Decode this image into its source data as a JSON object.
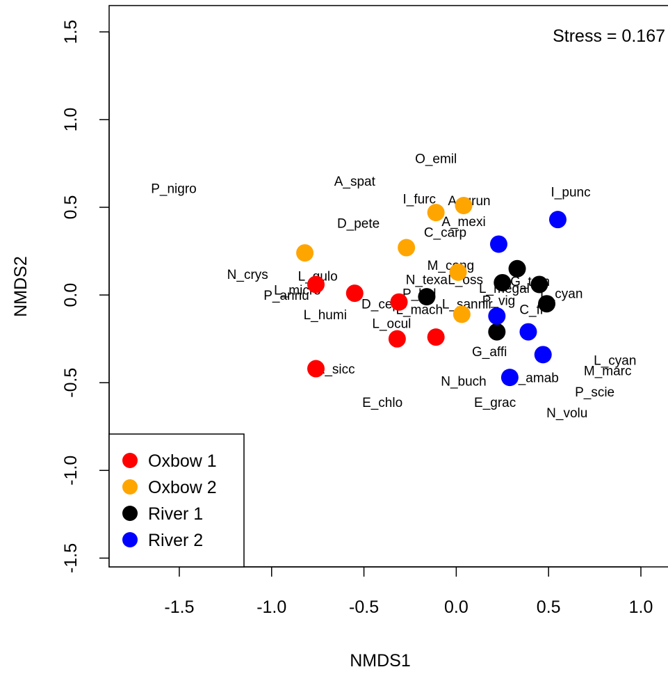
{
  "chart_data": {
    "type": "scatter",
    "xlabel": "NMDS1",
    "ylabel": "NMDS2",
    "xlim": [
      -1.88,
      1.32
    ],
    "ylim": [
      -1.55,
      1.65
    ],
    "x_ticks": [
      {
        "value": -1.5,
        "label": "-1.5"
      },
      {
        "value": -1.0,
        "label": "-1.0"
      },
      {
        "value": -0.5,
        "label": "-0.5"
      },
      {
        "value": 0.0,
        "label": "0.0"
      },
      {
        "value": 0.5,
        "label": "0.5"
      },
      {
        "value": 1.0,
        "label": "1.0"
      }
    ],
    "y_ticks": [
      {
        "value": -1.5,
        "label": "-1.5"
      },
      {
        "value": -1.0,
        "label": "-1.0"
      },
      {
        "value": -0.5,
        "label": "-0.5"
      },
      {
        "value": 0.0,
        "label": "0.0"
      },
      {
        "value": 0.5,
        "label": "0.5"
      },
      {
        "value": 1.0,
        "label": "1.0"
      },
      {
        "value": 1.5,
        "label": "1.5"
      }
    ],
    "annotation": "Stress = 0.167",
    "grid": false,
    "legend_position": "bottom-left",
    "series": [
      {
        "name": "Oxbow 1",
        "color": "#ff0000",
        "points": [
          {
            "x": -0.76,
            "y": 0.06
          },
          {
            "x": -0.55,
            "y": 0.01
          },
          {
            "x": -0.31,
            "y": -0.04
          },
          {
            "x": -0.32,
            "y": -0.25
          },
          {
            "x": -0.11,
            "y": -0.24
          },
          {
            "x": -0.76,
            "y": -0.42
          }
        ]
      },
      {
        "name": "Oxbow 2",
        "color": "#ffa500",
        "points": [
          {
            "x": -0.82,
            "y": 0.24
          },
          {
            "x": -0.27,
            "y": 0.27
          },
          {
            "x": -0.11,
            "y": 0.47
          },
          {
            "x": 0.04,
            "y": 0.51
          },
          {
            "x": 0.01,
            "y": 0.13
          },
          {
            "x": 0.03,
            "y": -0.11
          }
        ]
      },
      {
        "name": "River 1",
        "color": "#000000",
        "points": [
          {
            "x": -0.16,
            "y": -0.01
          },
          {
            "x": 0.25,
            "y": 0.07
          },
          {
            "x": 0.33,
            "y": 0.15
          },
          {
            "x": 0.45,
            "y": 0.06
          },
          {
            "x": 0.49,
            "y": -0.05
          },
          {
            "x": 0.22,
            "y": -0.21
          }
        ]
      },
      {
        "name": "River 2",
        "color": "#0000ff",
        "points": [
          {
            "x": 0.55,
            "y": 0.43
          },
          {
            "x": 0.23,
            "y": 0.29
          },
          {
            "x": 0.22,
            "y": -0.12
          },
          {
            "x": 0.39,
            "y": -0.21
          },
          {
            "x": 0.47,
            "y": -0.34
          },
          {
            "x": 0.29,
            "y": -0.47
          }
        ]
      }
    ],
    "species_labels": [
      {
        "text": "O_emil",
        "x": -0.11,
        "y": 0.78
      },
      {
        "text": "A_spat",
        "x": -0.55,
        "y": 0.65
      },
      {
        "text": "P_nigro",
        "x": -1.53,
        "y": 0.61
      },
      {
        "text": "I_punc",
        "x": 0.62,
        "y": 0.59
      },
      {
        "text": "I_furc",
        "x": -0.2,
        "y": 0.55
      },
      {
        "text": "A_grun",
        "x": 0.07,
        "y": 0.54
      },
      {
        "text": "D_pete",
        "x": -0.53,
        "y": 0.41
      },
      {
        "text": "A_mexi",
        "x": 0.04,
        "y": 0.42
      },
      {
        "text": "C_carp",
        "x": -0.06,
        "y": 0.36
      },
      {
        "text": "M_cong",
        "x": -0.03,
        "y": 0.17
      },
      {
        "text": "N_crys",
        "x": -1.13,
        "y": 0.12
      },
      {
        "text": "L_gulo",
        "x": -0.75,
        "y": 0.11
      },
      {
        "text": "N_texa",
        "x": -0.16,
        "y": 0.09
      },
      {
        "text": "L_oss",
        "x": 0.05,
        "y": 0.09
      },
      {
        "text": "L_micro",
        "x": -0.86,
        "y": 0.03
      },
      {
        "text": "L_megal",
        "x": 0.26,
        "y": 0.04
      },
      {
        "text": "G_tom",
        "x": 0.4,
        "y": 0.08
      },
      {
        "text": "L_cyan",
        "x": 0.57,
        "y": 0.01
      },
      {
        "text": "P_annu",
        "x": -0.92,
        "y": 0.0
      },
      {
        "text": "P_hol",
        "x": -0.2,
        "y": 0.01
      },
      {
        "text": "P_vig",
        "x": 0.23,
        "y": -0.03
      },
      {
        "text": "D_cepe",
        "x": -0.39,
        "y": -0.05
      },
      {
        "text": "L_mach",
        "x": -0.2,
        "y": -0.08
      },
      {
        "text": "L_sannir",
        "x": 0.06,
        "y": -0.05
      },
      {
        "text": "C_fr",
        "x": 0.41,
        "y": -0.08
      },
      {
        "text": "L_humi",
        "x": -0.71,
        "y": -0.11
      },
      {
        "text": "L_ocul",
        "x": -0.35,
        "y": -0.16
      },
      {
        "text": "G_affi",
        "x": 0.18,
        "y": -0.32
      },
      {
        "text": "L_sicc",
        "x": -0.65,
        "y": -0.42
      },
      {
        "text": "L_cyan",
        "x": 0.86,
        "y": -0.37
      },
      {
        "text": "M_marc",
        "x": 0.82,
        "y": -0.43
      },
      {
        "text": "N_amab",
        "x": 0.42,
        "y": -0.47
      },
      {
        "text": "N_buch",
        "x": 0.04,
        "y": -0.49
      },
      {
        "text": "P_scie",
        "x": 0.75,
        "y": -0.55
      },
      {
        "text": "E_chlo",
        "x": -0.4,
        "y": -0.61
      },
      {
        "text": "E_grac",
        "x": 0.21,
        "y": -0.61
      },
      {
        "text": "N_volu",
        "x": 0.6,
        "y": -0.67
      }
    ]
  }
}
